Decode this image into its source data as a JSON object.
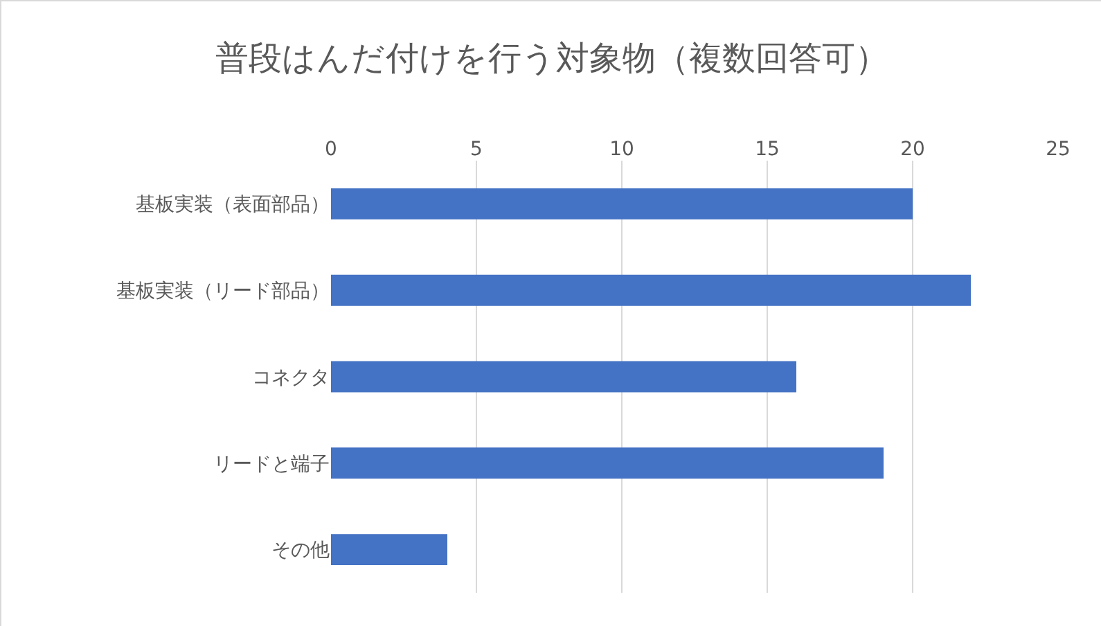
{
  "chart_data": {
    "type": "bar",
    "orientation": "horizontal",
    "title": "普段はんだ付けを行う対象物（複数回答可）",
    "categories": [
      "基板実装（表面部品）",
      "基板実装（リード部品）",
      "コネクタ",
      "リードと端子",
      "その他"
    ],
    "values": [
      20,
      22,
      16,
      19,
      4
    ],
    "color": "#4472c4",
    "xlim": [
      0,
      25
    ],
    "xticks": [
      0,
      5,
      10,
      15,
      20,
      25
    ],
    "grid": "x"
  }
}
